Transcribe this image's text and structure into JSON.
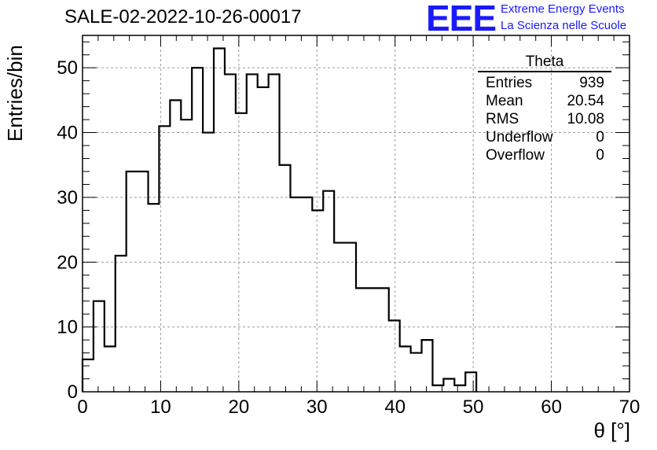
{
  "header": {
    "title": "SALE-02-2022-10-26-00017"
  },
  "logo": {
    "mark": "EEE",
    "line1": "Extreme Energy Events",
    "line2": "La Scienza nelle Scuole",
    "color": "#1a1aff"
  },
  "stats_box": {
    "name": "Theta",
    "rows": [
      {
        "label": "Entries",
        "value": "939"
      },
      {
        "label": "Mean",
        "value": "20.54"
      },
      {
        "label": "RMS",
        "value": "10.08"
      },
      {
        "label": "Underflow",
        "value": "0"
      },
      {
        "label": "Overflow",
        "value": "0"
      }
    ]
  },
  "chart_data": {
    "type": "histogram",
    "title": "SALE-02-2022-10-26-00017",
    "xlabel": "θ [°]",
    "ylabel": "Entries/bin",
    "xlim": [
      0,
      70
    ],
    "ylim": [
      0,
      55
    ],
    "xticks": [
      0,
      10,
      20,
      30,
      40,
      50,
      60,
      70
    ],
    "yticks": [
      0,
      10,
      20,
      30,
      40,
      50
    ],
    "grid": true,
    "bin_edges": [
      0,
      1.4,
      2.8,
      4.2,
      5.6,
      7.0,
      8.4,
      9.8,
      11.2,
      12.6,
      14.0,
      15.4,
      16.8,
      18.2,
      19.6,
      21.0,
      22.4,
      23.8,
      25.2,
      26.6,
      28.0,
      29.4,
      30.8,
      32.2,
      33.6,
      35.0,
      36.4,
      37.8,
      39.2,
      40.6,
      42.0,
      43.4,
      44.8,
      46.2,
      47.6,
      49.0,
      50.4
    ],
    "counts": [
      5,
      14,
      7,
      21,
      34,
      34,
      29,
      41,
      45,
      42,
      50,
      40,
      53,
      49,
      43,
      49,
      47,
      49,
      35,
      30,
      30,
      28,
      31,
      23,
      23,
      16,
      16,
      16,
      11,
      7,
      6,
      8,
      1,
      2,
      1,
      3
    ]
  }
}
